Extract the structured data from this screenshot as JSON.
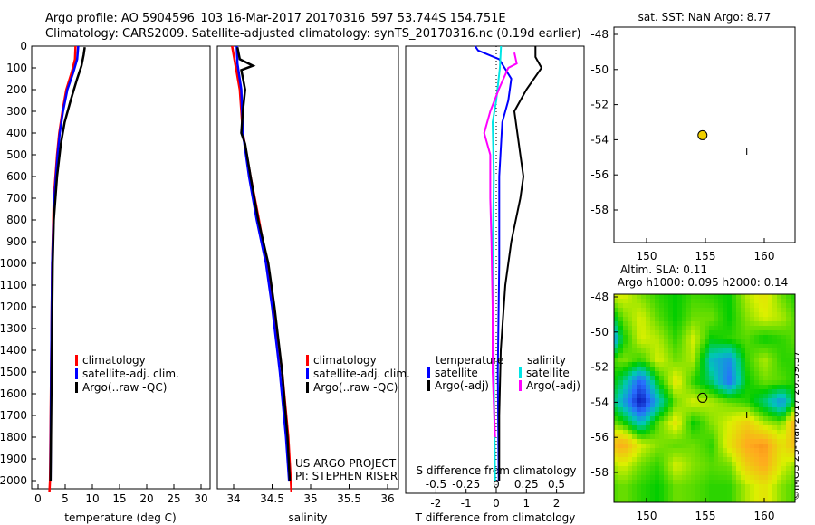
{
  "title_line1": "Argo profile: AO 5904596_103 16-Mar-2017 20170316_597 53.744S 154.751E",
  "title_line2": "Climatology: CARS2009. Satellite-adjusted climatology: synTS_20170316.nc (0.19d earlier)",
  "credit": "©IMOS 23-Mar-2017 20:39:37",
  "colors": {
    "climatology": "#ff0000",
    "satellite": "#0000ff",
    "argo": "#000000",
    "sal_sat": "#00e5e5",
    "sal_argo": "#ff00ff"
  },
  "chart_data": [
    {
      "type": "line",
      "name": "temperature",
      "xlabel": "temperature (deg C)",
      "xlim": [
        -1,
        31
      ],
      "xticks": [
        "0",
        "5",
        "10",
        "15",
        "20",
        "25",
        "30"
      ],
      "ylim": [
        0,
        2060
      ],
      "yticks": [
        "0",
        "100",
        "200",
        "300",
        "400",
        "500",
        "600",
        "700",
        "800",
        "900",
        "1000",
        "1100",
        "1200",
        "1300",
        "1400",
        "1500",
        "1600",
        "1700",
        "1800",
        "1900",
        "2000"
      ],
      "legend": [
        "climatology",
        "satellite-adj. clim.",
        "Argo(..raw -QC)"
      ],
      "series": [
        {
          "name": "climatology",
          "color": "#ff0000",
          "points": [
            [
              0,
              6.9
            ],
            [
              60,
              6.8
            ],
            [
              120,
              6.2
            ],
            [
              200,
              5.2
            ],
            [
              300,
              4.5
            ],
            [
              400,
              3.9
            ],
            [
              500,
              3.5
            ],
            [
              700,
              2.9
            ],
            [
              1000,
              2.6
            ],
            [
              1500,
              2.4
            ],
            [
              2000,
              2.2
            ],
            [
              2050,
              2.1
            ]
          ]
        },
        {
          "name": "satellite-adj. clim.",
          "color": "#0000ff",
          "points": [
            [
              0,
              7.4
            ],
            [
              60,
              7.2
            ],
            [
              120,
              6.5
            ],
            [
              200,
              5.4
            ],
            [
              300,
              4.6
            ],
            [
              400,
              4.0
            ],
            [
              500,
              3.6
            ],
            [
              700,
              3.0
            ],
            [
              1000,
              2.6
            ],
            [
              1500,
              2.4
            ],
            [
              2000,
              2.3
            ]
          ]
        },
        {
          "name": "Argo(..raw -QC)",
          "color": "#000000",
          "points": [
            [
              5,
              8.6
            ],
            [
              40,
              8.4
            ],
            [
              90,
              8.0
            ],
            [
              150,
              7.2
            ],
            [
              250,
              6.0
            ],
            [
              350,
              4.9
            ],
            [
              450,
              4.2
            ],
            [
              600,
              3.5
            ],
            [
              800,
              2.9
            ],
            [
              1000,
              2.7
            ],
            [
              1500,
              2.5
            ],
            [
              2000,
              2.3
            ]
          ]
        }
      ],
      "annotation": []
    },
    {
      "type": "line",
      "name": "salinity",
      "xlabel": "salinity",
      "xlim": [
        33.8,
        36.05
      ],
      "xticks": [
        "34",
        "34.5",
        "35",
        "35.5",
        "36"
      ],
      "legend": [
        "climatology",
        "satellite-adj. clim.",
        "Argo(..raw -QC)"
      ],
      "annotation": [
        "US ARGO PROJECT",
        "PI: STEPHEN RISER"
      ],
      "series": [
        {
          "name": "climatology",
          "color": "#ff0000",
          "points": [
            [
              0,
              33.98
            ],
            [
              80,
              34.02
            ],
            [
              200,
              34.08
            ],
            [
              400,
              34.12
            ],
            [
              600,
              34.22
            ],
            [
              800,
              34.33
            ],
            [
              1000,
              34.43
            ],
            [
              1200,
              34.52
            ],
            [
              1500,
              34.63
            ],
            [
              1800,
              34.71
            ],
            [
              2050,
              34.75
            ]
          ]
        },
        {
          "name": "satellite-adj. clim.",
          "color": "#0000ff",
          "points": [
            [
              0,
              34.04
            ],
            [
              80,
              34.05
            ],
            [
              200,
              34.1
            ],
            [
              400,
              34.12
            ],
            [
              600,
              34.2
            ],
            [
              800,
              34.3
            ],
            [
              1000,
              34.42
            ],
            [
              1200,
              34.5
            ],
            [
              1500,
              34.6
            ],
            [
              1800,
              34.68
            ],
            [
              2000,
              34.72
            ]
          ]
        },
        {
          "name": "Argo(..raw -QC)",
          "color": "#000000",
          "points": [
            [
              5,
              34.05
            ],
            [
              60,
              34.08
            ],
            [
              90,
              34.25
            ],
            [
              110,
              34.1
            ],
            [
              200,
              34.15
            ],
            [
              300,
              34.12
            ],
            [
              400,
              34.1
            ],
            [
              450,
              34.15
            ],
            [
              600,
              34.22
            ],
            [
              800,
              34.32
            ],
            [
              1000,
              34.45
            ],
            [
              1200,
              34.53
            ],
            [
              1500,
              34.63
            ],
            [
              1800,
              34.7
            ],
            [
              2000,
              34.73
            ]
          ]
        }
      ]
    },
    {
      "type": "line",
      "name": "difference",
      "xlabel": "T difference from climatology",
      "x2label": "S difference from climatology",
      "xlim": [
        -3,
        3
      ],
      "xticks": [
        "-2",
        "-1",
        "0",
        "1",
        "2"
      ],
      "x2ticks": [
        "-0.5",
        "-0.25",
        "0",
        "0.25",
        "0.5"
      ],
      "legend_titles": [
        "temperature",
        "salinity"
      ],
      "legend": [
        "satellite",
        "Argo(-adj)",
        "satellite",
        "Argo(-adj)"
      ],
      "series": [
        {
          "name": "T satellite",
          "color": "#0000ff",
          "axis": "T",
          "points": [
            [
              0,
              -0.7
            ],
            [
              20,
              -0.6
            ],
            [
              60,
              0.1
            ],
            [
              150,
              0.5
            ],
            [
              250,
              0.4
            ],
            [
              350,
              0.2
            ],
            [
              600,
              0.1
            ],
            [
              1000,
              0.1
            ],
            [
              1500,
              0.05
            ],
            [
              2000,
              0.08
            ]
          ]
        },
        {
          "name": "T Argo(-adj)",
          "color": "#000000",
          "axis": "T",
          "points": [
            [
              0,
              1.3
            ],
            [
              50,
              1.3
            ],
            [
              100,
              1.5
            ],
            [
              200,
              1.0
            ],
            [
              300,
              0.6
            ],
            [
              400,
              0.7
            ],
            [
              500,
              0.8
            ],
            [
              600,
              0.9
            ],
            [
              700,
              0.8
            ],
            [
              900,
              0.5
            ],
            [
              1100,
              0.3
            ],
            [
              1400,
              0.15
            ],
            [
              1700,
              0.1
            ],
            [
              2000,
              0.1
            ]
          ]
        },
        {
          "name": "S satellite",
          "color": "#00e5e5",
          "axis": "S",
          "points": [
            [
              0,
              0.04
            ],
            [
              100,
              0.03
            ],
            [
              250,
              0.0
            ],
            [
              350,
              -0.03
            ],
            [
              600,
              -0.02
            ],
            [
              1000,
              -0.03
            ],
            [
              1500,
              -0.02
            ],
            [
              2000,
              -0.01
            ]
          ]
        },
        {
          "name": "S Argo(-adj)",
          "color": "#ff00ff",
          "axis": "S",
          "points": [
            [
              30,
              0.15
            ],
            [
              80,
              0.17
            ],
            [
              100,
              0.1
            ],
            [
              200,
              0.02
            ],
            [
              300,
              -0.05
            ],
            [
              400,
              -0.1
            ],
            [
              500,
              -0.05
            ],
            [
              700,
              -0.05
            ],
            [
              900,
              -0.04
            ],
            [
              1200,
              -0.03
            ],
            [
              1500,
              -0.03
            ],
            [
              1800,
              -0.01
            ]
          ]
        }
      ]
    },
    {
      "type": "scatter",
      "name": "sst-map",
      "title": "sat. SST: NaN Argo: 8.77",
      "xlim": [
        146,
        163.5
      ],
      "ylim": [
        -59.5,
        -47.6
      ],
      "xticks": [
        "150",
        "155",
        "160"
      ],
      "yticks": [
        "-48",
        "-50",
        "-52",
        "-54",
        "-56",
        "-58"
      ],
      "point": [
        154.751,
        -53.744
      ]
    },
    {
      "type": "heatmap",
      "name": "sla-map",
      "title1": "Altim. SLA: 0.11",
      "title2": "Argo h1000: 0.095 h2000: 0.14",
      "xlim": [
        146,
        163.5
      ],
      "ylim": [
        -59.5,
        -47.6
      ],
      "xticks": [
        "150",
        "155",
        "160"
      ],
      "yticks": [
        "-48",
        "-50",
        "-52",
        "-54",
        "-56",
        "-58"
      ],
      "point": [
        154.751,
        -53.744
      ],
      "lon": [
        146.5,
        148,
        149.5,
        151,
        152.5,
        154,
        155.5,
        157,
        158.5,
        160,
        161.5,
        163
      ],
      "lat": [
        -48,
        -49.2,
        -50.4,
        -51.6,
        -52.8,
        -54,
        -55.2,
        -56.4,
        -57.6,
        -58.8
      ],
      "values": [
        [
          0.08,
          0.1,
          0.06,
          0.02,
          0,
          0.03,
          0.02,
          0,
          0.08,
          0.12,
          0.05,
          0
        ],
        [
          -0.1,
          0.05,
          0.1,
          0.04,
          0,
          0.05,
          0.05,
          0,
          0.06,
          0.1,
          0.08,
          0.02
        ],
        [
          -0.3,
          0,
          0.1,
          0.08,
          0.02,
          0.1,
          0.0,
          0.02,
          0.04,
          0.0,
          0.02,
          0.05
        ],
        [
          0,
          0.06,
          0.02,
          0.1,
          0.05,
          0.08,
          -0.1,
          -0.15,
          0.02,
          0.08,
          0.02,
          0.02
        ],
        [
          0.05,
          -0.05,
          -0.2,
          0.0,
          0.12,
          0.02,
          -0.05,
          -0.18,
          0.0,
          0.05,
          0.04,
          0.0
        ],
        [
          0.02,
          -0.12,
          -0.28,
          -0.1,
          0.05,
          0.1,
          0.08,
          0.05,
          0.02,
          -0.05,
          -0.15,
          0.06
        ],
        [
          0.08,
          0.02,
          -0.1,
          0.04,
          0.12,
          0.0,
          0.06,
          0.1,
          0.15,
          0.08,
          0.05,
          0.25
        ],
        [
          0.15,
          0.2,
          0.1,
          0.06,
          0.04,
          0.05,
          0.02,
          0.12,
          0.2,
          0.22,
          0.12,
          0.2
        ],
        [
          0.05,
          0.1,
          0.05,
          0.02,
          0.1,
          0.06,
          0.04,
          0.05,
          0.15,
          0.2,
          0.1,
          0.05
        ],
        [
          0.02,
          0.05,
          0.02,
          0,
          0.05,
          0.04,
          0.02,
          0.02,
          0.08,
          0.12,
          0.06,
          0.02
        ]
      ]
    }
  ]
}
